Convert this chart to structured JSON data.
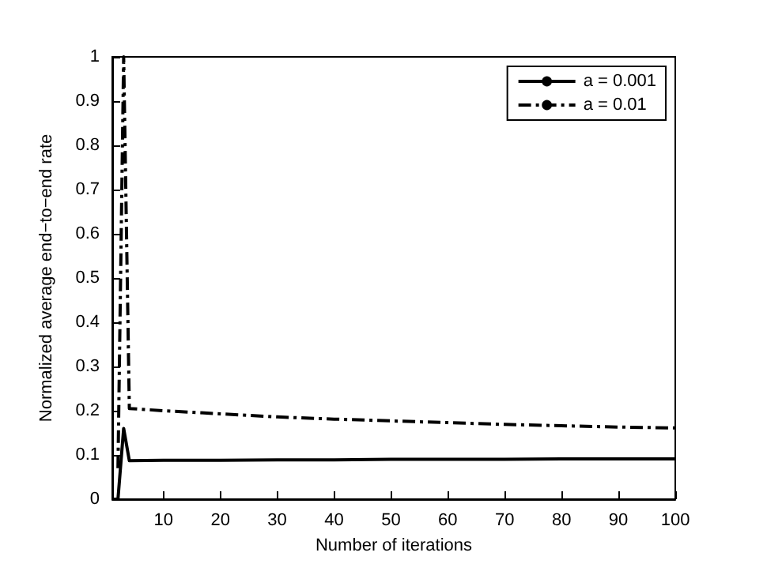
{
  "chart_data": {
    "type": "line",
    "xlabel": "Number of iterations",
    "ylabel": "Normalized average end−to−end rate",
    "x": [
      1,
      2,
      3,
      4,
      10,
      20,
      30,
      40,
      50,
      60,
      70,
      80,
      90,
      100
    ],
    "series": [
      {
        "name": "a = 0.001",
        "color": "#000000",
        "line_style": "solid",
        "values": [
          0,
          0,
          0.16,
          0.087,
          0.088,
          0.088,
          0.089,
          0.089,
          0.09,
          0.09,
          0.09,
          0.091,
          0.091,
          0.091
        ]
      },
      {
        "name": "a = 0.01",
        "color": "#000000",
        "line_style": "dashed",
        "x": [
          2,
          3,
          4,
          10,
          20,
          30,
          40,
          50,
          60,
          70,
          80,
          90,
          100
        ],
        "values": [
          0.07,
          1.0,
          0.205,
          0.2,
          0.193,
          0.186,
          0.181,
          0.177,
          0.173,
          0.169,
          0.166,
          0.163,
          0.161
        ]
      }
    ],
    "xlim": [
      1,
      100
    ],
    "xticks": [
      10,
      20,
      30,
      40,
      50,
      60,
      70,
      80,
      90,
      100
    ],
    "ylim": [
      0,
      1
    ],
    "yticks": [
      0,
      0.1,
      0.2,
      0.3,
      0.4,
      0.5,
      0.6,
      0.7,
      0.8,
      0.9,
      1
    ],
    "grid": false,
    "legend": "top right",
    "marker": "none"
  }
}
